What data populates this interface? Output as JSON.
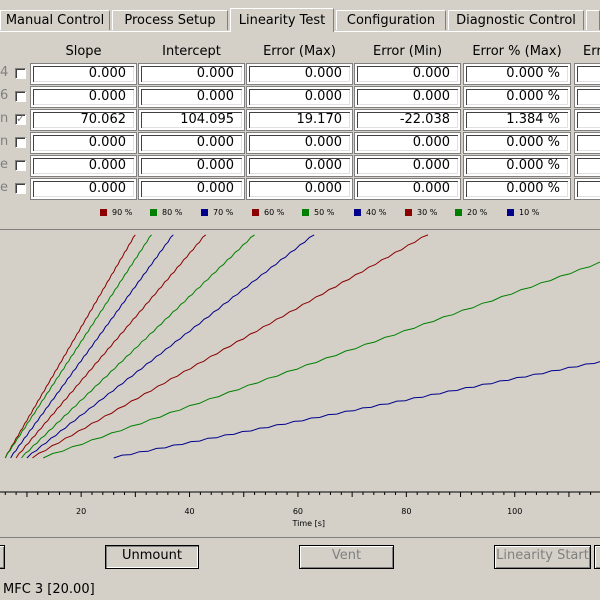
{
  "tabs": [
    {
      "label": "Manual Control",
      "active": false
    },
    {
      "label": "Process Setup",
      "active": false
    },
    {
      "label": "Linearity Test",
      "active": true
    },
    {
      "label": "Configuration",
      "active": false
    },
    {
      "label": "Diagnostic Control",
      "active": false
    }
  ],
  "table": {
    "headers": [
      "Slope",
      "Intercept",
      "Error (Max)",
      "Error (Min)",
      "Error % (Max)",
      "Erro"
    ],
    "rows": [
      {
        "label": "4",
        "checked": false,
        "values": [
          "0.000",
          "0.000",
          "0.000",
          "0.000",
          "0.000 %"
        ]
      },
      {
        "label": "6",
        "checked": false,
        "values": [
          "0.000",
          "0.000",
          "0.000",
          "0.000",
          "0.000 %"
        ]
      },
      {
        "label": "n",
        "checked": true,
        "values": [
          "70.062",
          "104.095",
          "19.170",
          "-22.038",
          "1.384 %"
        ]
      },
      {
        "label": "n",
        "checked": false,
        "values": [
          "0.000",
          "0.000",
          "0.000",
          "0.000",
          "0.000 %"
        ]
      },
      {
        "label": "e",
        "checked": false,
        "values": [
          "0.000",
          "0.000",
          "0.000",
          "0.000",
          "0.000 %"
        ]
      },
      {
        "label": "e",
        "checked": false,
        "values": [
          "0.000",
          "0.000",
          "0.000",
          "0.000",
          "0.000 %"
        ]
      }
    ]
  },
  "chart_data": {
    "type": "line",
    "xlabel": "Time [s]",
    "xticks": [
      20,
      40,
      60,
      80,
      100
    ],
    "xlim": [
      5,
      121
    ],
    "ylim": [
      0,
      1
    ],
    "legend_position": "top",
    "series": [
      {
        "name": "90 %",
        "color": "#8b0000",
        "x": [
          6,
          30
        ],
        "y": [
          0.02,
          0.99
        ]
      },
      {
        "name": "80 %",
        "color": "#008000",
        "x": [
          6,
          33
        ],
        "y": [
          0.02,
          0.99
        ]
      },
      {
        "name": "70 %",
        "color": "#00008b",
        "x": [
          7,
          37
        ],
        "y": [
          0.02,
          0.99
        ]
      },
      {
        "name": "60 %",
        "color": "#8b0000",
        "x": [
          8,
          43
        ],
        "y": [
          0.02,
          0.99
        ]
      },
      {
        "name": "50 %",
        "color": "#008000",
        "x": [
          9,
          52
        ],
        "y": [
          0.02,
          0.99
        ]
      },
      {
        "name": "40 %",
        "color": "#00008b",
        "x": [
          10,
          63
        ],
        "y": [
          0.02,
          0.99
        ]
      },
      {
        "name": "30 %",
        "color": "#8b0000",
        "x": [
          11,
          84
        ],
        "y": [
          0.02,
          0.99
        ]
      },
      {
        "name": "20 %",
        "color": "#008000",
        "x": [
          13,
          121
        ],
        "y": [
          0.02,
          0.91
        ]
      },
      {
        "name": "10 %",
        "color": "#00008b",
        "x": [
          26,
          121
        ],
        "y": [
          0.02,
          0.46
        ]
      }
    ]
  },
  "buttons": {
    "unmount": "Unmount",
    "vent": "Vent",
    "linearity_start": "Linearity Start"
  },
  "status": {
    "text": "MFC 3 [20.00]"
  }
}
